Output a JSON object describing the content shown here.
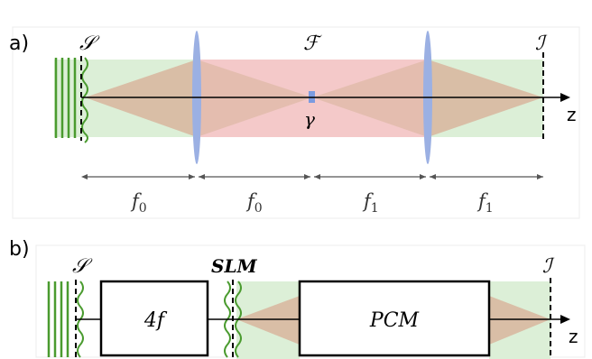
{
  "panel_a": {
    "panel_label": "a)",
    "source_plane": "𝒮",
    "fourier_plane": "ℱ",
    "image_plane": "ℐ",
    "gamma": "γ",
    "axis_label": "z",
    "dims": [
      {
        "label": "f",
        "sub": "0"
      },
      {
        "label": "f",
        "sub": "0"
      },
      {
        "label": "f",
        "sub": "1"
      },
      {
        "label": "f",
        "sub": "1"
      }
    ]
  },
  "panel_b": {
    "panel_label": "b)",
    "source_plane": "𝒮",
    "slm_label": "SLM",
    "image_plane": "ℐ",
    "box_4f": "4f",
    "box_pcm": "PCM",
    "axis_label": "z"
  },
  "colors": {
    "green_fill": "#dcefd7",
    "red_fill": "#f4c9c9",
    "brown_fill": "#d8b59e",
    "lens": "#9bb0e3",
    "wave": "#4a9b2f"
  }
}
